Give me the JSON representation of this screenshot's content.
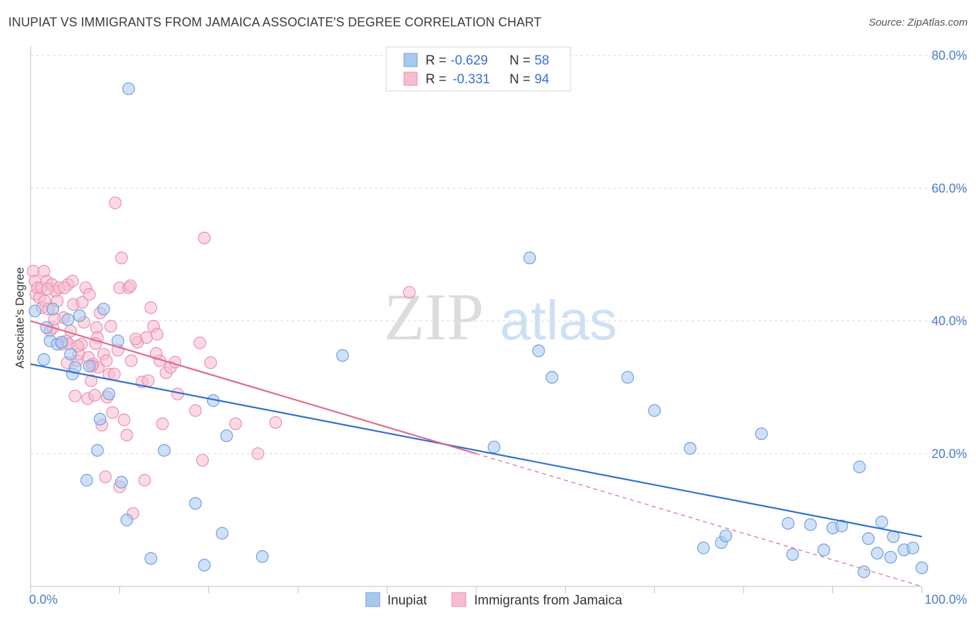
{
  "title": "INUPIAT VS IMMIGRANTS FROM JAMAICA ASSOCIATE'S DEGREE CORRELATION CHART",
  "source": "Source: ZipAtlas.com",
  "watermark": {
    "zip": "ZIP",
    "atlas": "atlas"
  },
  "colors": {
    "inupiat_fill": "#a9c8f0",
    "inupiat_stroke": "#6f9fe0",
    "inupiat_line": "#2c6fd1",
    "jamaica_fill": "#f7bcd0",
    "jamaica_stroke": "#eb8fae",
    "jamaica_line": "#e0688f",
    "grid": "#d9d9d9",
    "tick_label": "#4a7cc7"
  },
  "legend": {
    "r_label": "R =",
    "n_label": "N =",
    "inupiat": {
      "r": "-0.629",
      "n": "58"
    },
    "jamaica": {
      "r": "-0.331",
      "n": "94"
    }
  },
  "chart_data": {
    "type": "scatter",
    "title": "INUPIAT VS IMMIGRANTS FROM JAMAICA ASSOCIATE'S DEGREE CORRELATION CHART",
    "xlabel": "",
    "ylabel": "Associate's Degree",
    "xlim": [
      0,
      100
    ],
    "ylim": [
      0,
      82
    ],
    "x_tick_labels": [
      "0.0%",
      "100.0%"
    ],
    "y_ticks": [
      20,
      40,
      60,
      80
    ],
    "y_tick_labels": [
      "20.0%",
      "40.0%",
      "60.0%",
      "80.0%"
    ],
    "grid": true,
    "legend_position": "top-center",
    "series": [
      {
        "name": "Inupiat",
        "r": -0.629,
        "n": 58,
        "trend": {
          "x0": 0,
          "y0": 33.5,
          "x1": 100,
          "y1": 7.5,
          "dashed_from": null
        },
        "points": [
          [
            0.5,
            41.5
          ],
          [
            1.5,
            34.2
          ],
          [
            1.8,
            39
          ],
          [
            2.2,
            37
          ],
          [
            2.5,
            41.8
          ],
          [
            3,
            36.5
          ],
          [
            3.5,
            36.8
          ],
          [
            4.2,
            40.2
          ],
          [
            4.5,
            35
          ],
          [
            4.7,
            32
          ],
          [
            5,
            33
          ],
          [
            5.5,
            40.8
          ],
          [
            6.3,
            16
          ],
          [
            6.6,
            33.2
          ],
          [
            7.5,
            20.5
          ],
          [
            7.8,
            25.2
          ],
          [
            8.2,
            41.8
          ],
          [
            8.8,
            29
          ],
          [
            9.8,
            37
          ],
          [
            10.2,
            15.7
          ],
          [
            10.8,
            10
          ],
          [
            11,
            75
          ],
          [
            13.5,
            4.2
          ],
          [
            15,
            20.5
          ],
          [
            18.5,
            12.5
          ],
          [
            19.5,
            3.2
          ],
          [
            20.5,
            28
          ],
          [
            21.5,
            8
          ],
          [
            22,
            22.7
          ],
          [
            26,
            4.5
          ],
          [
            35,
            34.8
          ],
          [
            52,
            21
          ],
          [
            56,
            49.5
          ],
          [
            57,
            35.5
          ],
          [
            58.5,
            31.5
          ],
          [
            67,
            31.5
          ],
          [
            70,
            26.5
          ],
          [
            74,
            20.8
          ],
          [
            75.5,
            5.8
          ],
          [
            77.5,
            6.6
          ],
          [
            78,
            7.6
          ],
          [
            82,
            23
          ],
          [
            85,
            9.5
          ],
          [
            85.5,
            4.8
          ],
          [
            87.5,
            9.3
          ],
          [
            89,
            5.5
          ],
          [
            90,
            8.8
          ],
          [
            91,
            9.1
          ],
          [
            93,
            18
          ],
          [
            93.5,
            2.2
          ],
          [
            94,
            7.2
          ],
          [
            95,
            5
          ],
          [
            95.5,
            9.7
          ],
          [
            96.5,
            4.4
          ],
          [
            96.8,
            7.5
          ],
          [
            98,
            5.5
          ],
          [
            99,
            5.8
          ],
          [
            100,
            2.8
          ]
        ]
      },
      {
        "name": "Immigrants from Jamaica",
        "r": -0.331,
        "n": 94,
        "trend": {
          "x0": 0,
          "y0": 40,
          "x1": 100,
          "y1": 0,
          "solid_until": 50
        },
        "points": [
          [
            0.3,
            47.5
          ],
          [
            0.5,
            46
          ],
          [
            0.6,
            44
          ],
          [
            0.8,
            45
          ],
          [
            1,
            43.5
          ],
          [
            1.2,
            45
          ],
          [
            1.3,
            42
          ],
          [
            1.5,
            47.5
          ],
          [
            1.6,
            43
          ],
          [
            1.8,
            46
          ],
          [
            2,
            41.8
          ],
          [
            2.2,
            38.5
          ],
          [
            2.4,
            45.5
          ],
          [
            2.5,
            39
          ],
          [
            2.8,
            44.5
          ],
          [
            3,
            43
          ],
          [
            3.2,
            45
          ],
          [
            3.5,
            36.5
          ],
          [
            3.7,
            40.5
          ],
          [
            4,
            37
          ],
          [
            4.2,
            45.5
          ],
          [
            4.3,
            36.5
          ],
          [
            4.5,
            38.5
          ],
          [
            4.7,
            46
          ],
          [
            4.8,
            42.5
          ],
          [
            5,
            28.7
          ],
          [
            5.2,
            34
          ],
          [
            5.4,
            35
          ],
          [
            5.7,
            36.5
          ],
          [
            5.8,
            42.8
          ],
          [
            6,
            39.8
          ],
          [
            6.2,
            45
          ],
          [
            6.4,
            28.3
          ],
          [
            6.5,
            34.5
          ],
          [
            6.6,
            44
          ],
          [
            6.8,
            31
          ],
          [
            7,
            33.5
          ],
          [
            7.2,
            28.8
          ],
          [
            7.4,
            39
          ],
          [
            7.5,
            37.5
          ],
          [
            7.6,
            33
          ],
          [
            7.8,
            41.2
          ],
          [
            8,
            24.3
          ],
          [
            8.2,
            35
          ],
          [
            8.4,
            16.5
          ],
          [
            8.5,
            34
          ],
          [
            8.6,
            28.5
          ],
          [
            8.8,
            32
          ],
          [
            9,
            39.2
          ],
          [
            9.2,
            26.2
          ],
          [
            9.5,
            57.8
          ],
          [
            9.8,
            35.6
          ],
          [
            10,
            45
          ],
          [
            10,
            15
          ],
          [
            10.2,
            49.5
          ],
          [
            10.5,
            25.1
          ],
          [
            10.8,
            22.8
          ],
          [
            11,
            45
          ],
          [
            11.2,
            45.3
          ],
          [
            11.3,
            34
          ],
          [
            11.5,
            11
          ],
          [
            12,
            36.8
          ],
          [
            12.5,
            30.8
          ],
          [
            12.8,
            16
          ],
          [
            13,
            37.5
          ],
          [
            13.5,
            42
          ],
          [
            13.8,
            39.2
          ],
          [
            14.2,
            38
          ],
          [
            14.5,
            34
          ],
          [
            14.8,
            24.5
          ],
          [
            15.2,
            32.2
          ],
          [
            15.7,
            33
          ],
          [
            16.2,
            33.8
          ],
          [
            16.5,
            29
          ],
          [
            18.5,
            26.5
          ],
          [
            19,
            36.7
          ],
          [
            19.3,
            19
          ],
          [
            19.5,
            52.5
          ],
          [
            20.2,
            33.7
          ],
          [
            23,
            24.5
          ],
          [
            25.5,
            20
          ],
          [
            27.5,
            24.7
          ],
          [
            42.5,
            44.3
          ],
          [
            1.9,
            44.8
          ],
          [
            2.7,
            40.3
          ],
          [
            3.8,
            45
          ],
          [
            4.1,
            33.7
          ],
          [
            5.3,
            36.2
          ],
          [
            6.9,
            33.2
          ],
          [
            7.3,
            36.6
          ],
          [
            9.4,
            32
          ],
          [
            11.8,
            37.3
          ],
          [
            13.2,
            31
          ],
          [
            14.1,
            35.1
          ]
        ]
      }
    ]
  },
  "bottom_legend": {
    "inupiat": "Inupiat",
    "jamaica": "Immigrants from Jamaica"
  }
}
